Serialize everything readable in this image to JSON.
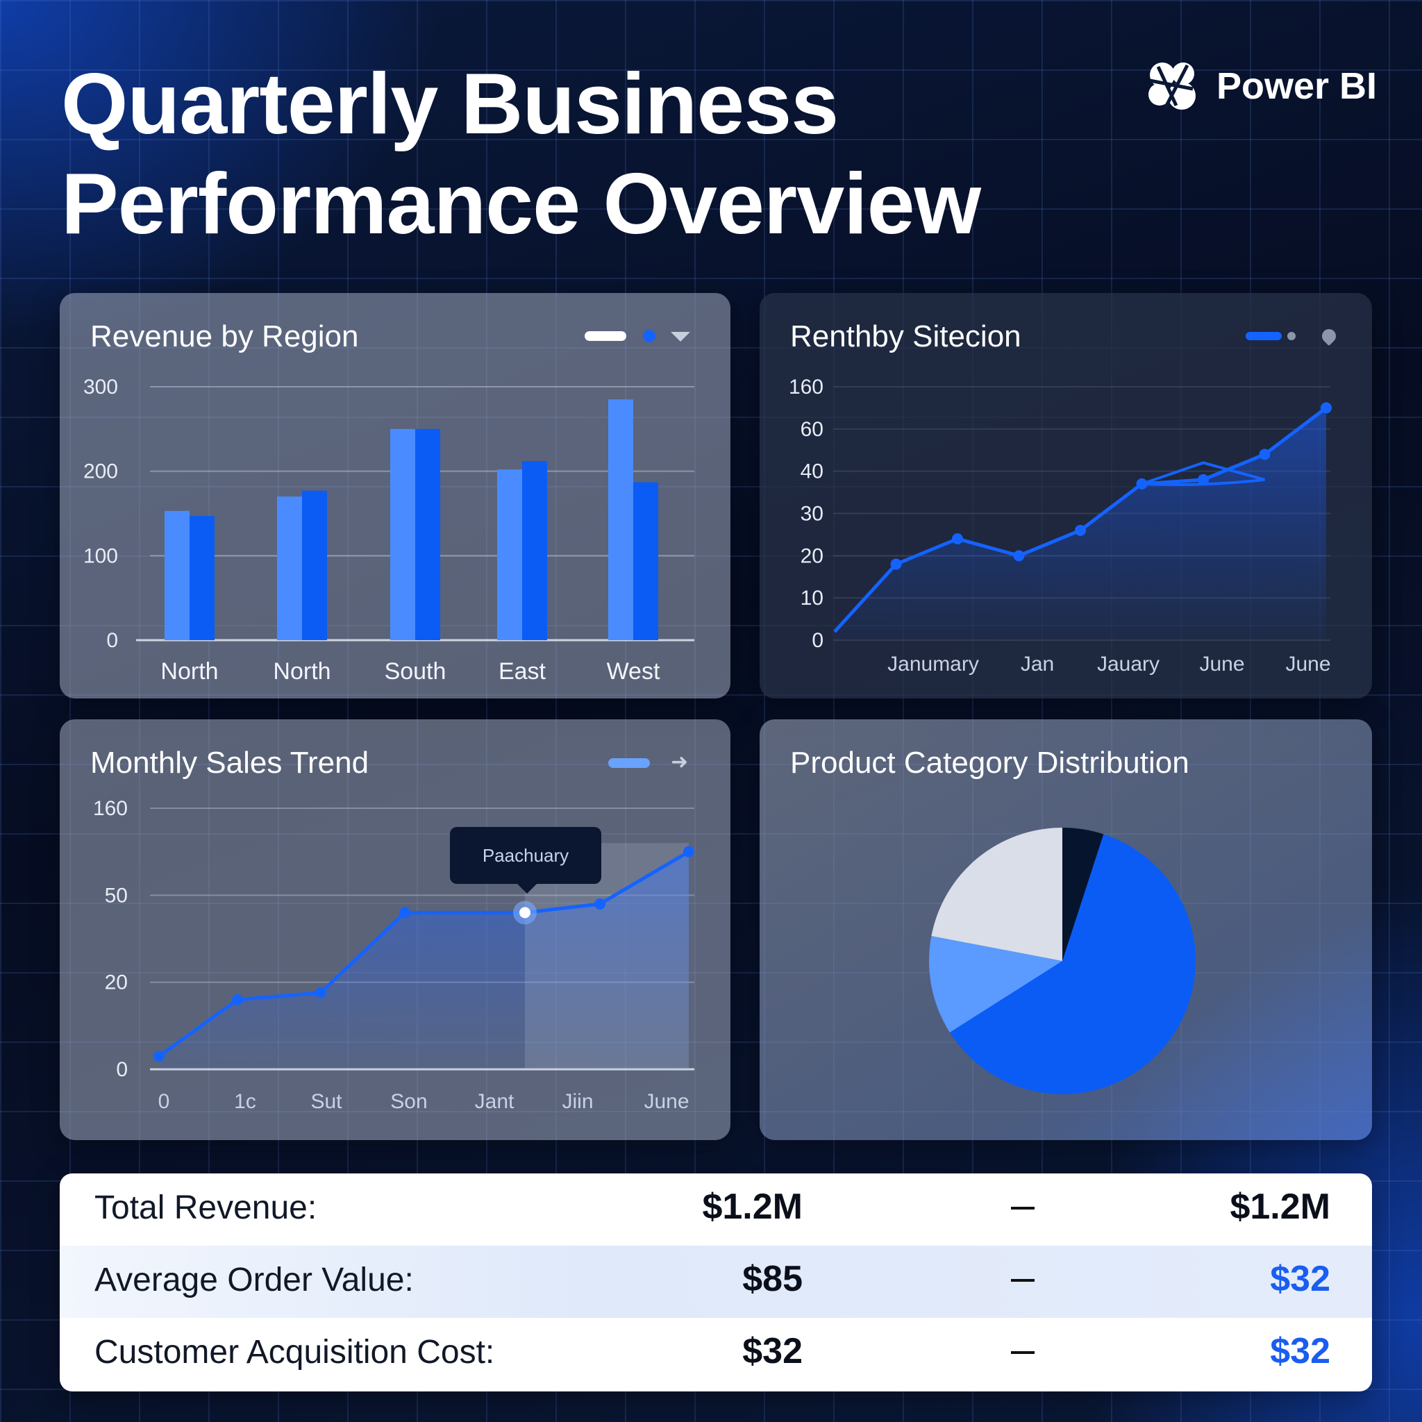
{
  "title_line1": "Quarterly Business",
  "title_line2": "Performance Overview",
  "brand": {
    "name": "Power BI",
    "icon": "power-bi-logo-icon"
  },
  "colors": {
    "bar_light": "#4a8cff",
    "bar_dark": "#0a5cf5",
    "line": "#1463ff",
    "pie_blue": "#0a5cf5",
    "pie_light_blue": "#5b9aff",
    "pie_light_gray": "#d9dee8",
    "pie_navy": "#07142e",
    "kpi_blue": "#1a5df0"
  },
  "cards": {
    "revenue": {
      "title": "Revenue by Region"
    },
    "renthby": {
      "title": "Renthby Sitecion"
    },
    "monthly": {
      "title": "Monthly Sales Trend",
      "tooltip": "Paachuary"
    },
    "product": {
      "title": "Product Category Distribution"
    }
  },
  "chart_data": [
    {
      "id": "revenue-by-region",
      "type": "bar",
      "title": "Revenue by Region",
      "categories": [
        "North",
        "North",
        "South",
        "East",
        "West"
      ],
      "series": [
        {
          "values": [
            153,
            170,
            250,
            202,
            285
          ]
        },
        {
          "values": [
            147,
            177,
            250,
            212,
            187
          ]
        }
      ],
      "yticks": [
        0,
        100,
        200,
        300
      ],
      "ylim": [
        0,
        300
      ],
      "grid": true
    },
    {
      "id": "renthby-sitecion",
      "type": "area",
      "title": "Renthby Sitecion",
      "x_labels": [
        "Janumary",
        "Jan",
        "Jauary",
        "June",
        "June"
      ],
      "yticks": [
        "0",
        "10",
        "20",
        "30",
        "40",
        "60",
        "160"
      ],
      "y_positions": [
        0,
        1,
        2,
        3,
        4,
        5,
        6
      ],
      "series": [
        {
          "values": [
            0.2,
            1.8,
            2.4,
            2.0,
            2.6,
            3.7,
            3.8,
            4.4,
            5.5
          ]
        },
        {
          "values": [
            3.7,
            4.2,
            3.8
          ]
        }
      ],
      "grid": true
    },
    {
      "id": "monthly-sales-trend",
      "type": "area",
      "title": "Monthly Sales Trend",
      "x_labels": [
        "0",
        "1c",
        "Sut",
        "Son",
        "Jant",
        "Jiin",
        "June"
      ],
      "yticks": [
        "0",
        "20",
        "50",
        "160"
      ],
      "y_positions": [
        0,
        1,
        2,
        3
      ],
      "series": [
        {
          "values": [
            0.15,
            0.8,
            0.88,
            1.8,
            1.8,
            1.8,
            1.9,
            2.5
          ]
        }
      ],
      "highlight_index": 5,
      "tooltip": "Paachuary",
      "grid": true
    },
    {
      "id": "product-category-distribution",
      "type": "pie",
      "title": "Product Category Distribution",
      "values": [
        61,
        12,
        22,
        5
      ],
      "slice_colors": [
        "#0a5cf5",
        "#5b9aff",
        "#d9dee8",
        "#07142e"
      ]
    }
  ],
  "kpis": [
    {
      "label": "Total Revenue:",
      "value": "$1.2M",
      "compare": "$1.2M",
      "compare_blue": false
    },
    {
      "label": "Average Order Value:",
      "value": "$85",
      "compare": "$32",
      "compare_blue": true
    },
    {
      "label": "Customer Acquisition Cost:",
      "value": "$32",
      "compare": "$32",
      "compare_blue": true
    }
  ]
}
